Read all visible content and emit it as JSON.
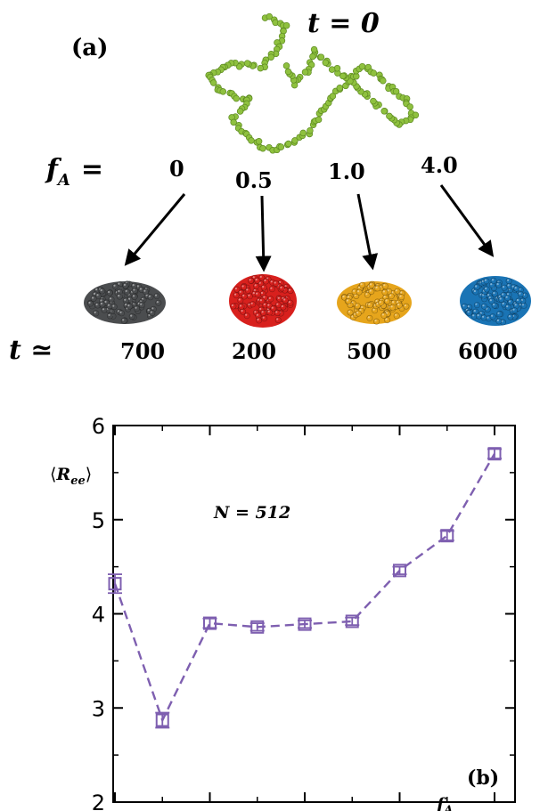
{
  "panel_a": {
    "label": "(a)",
    "t_initial_label": "t = 0",
    "fa_label": "f",
    "fa_sub": "A",
    "fa_eq": "=",
    "fa_values": [
      "0",
      "0.5",
      "1.0",
      "4.0"
    ],
    "t_label": "t ≃",
    "t_values": [
      "700",
      "200",
      "500",
      "6000"
    ],
    "chain_color": "#8fc13f",
    "globule_colors": [
      "#4b4d4f",
      "#d8201d",
      "#e6a51c",
      "#1a74b5"
    ]
  },
  "chart_data": {
    "type": "line",
    "panel_label": "(b)",
    "annotation": "N = 512",
    "ylabel": "⟨R_ee⟩",
    "xlabel": "f_A",
    "xlim": [
      0,
      4
    ],
    "ylim": [
      2,
      6
    ],
    "xticks": [
      "0",
      "1",
      "2",
      "3",
      "4"
    ],
    "yticks": [
      "2",
      "3",
      "4",
      "5",
      "6"
    ],
    "line_color": "#7e5fb0",
    "line_style": "dashed",
    "marker": "open-square",
    "series": [
      {
        "x": [
          0,
          0.5,
          1,
          1.5,
          2,
          2.5,
          3,
          3.5,
          4
        ],
        "y": [
          4.32,
          2.87,
          3.9,
          3.86,
          3.89,
          3.92,
          4.46,
          4.83,
          5.7
        ],
        "err": [
          0.1,
          0.08,
          0.05,
          0.04,
          0.04,
          0.04,
          0.04,
          0.05,
          0.05
        ]
      }
    ]
  }
}
